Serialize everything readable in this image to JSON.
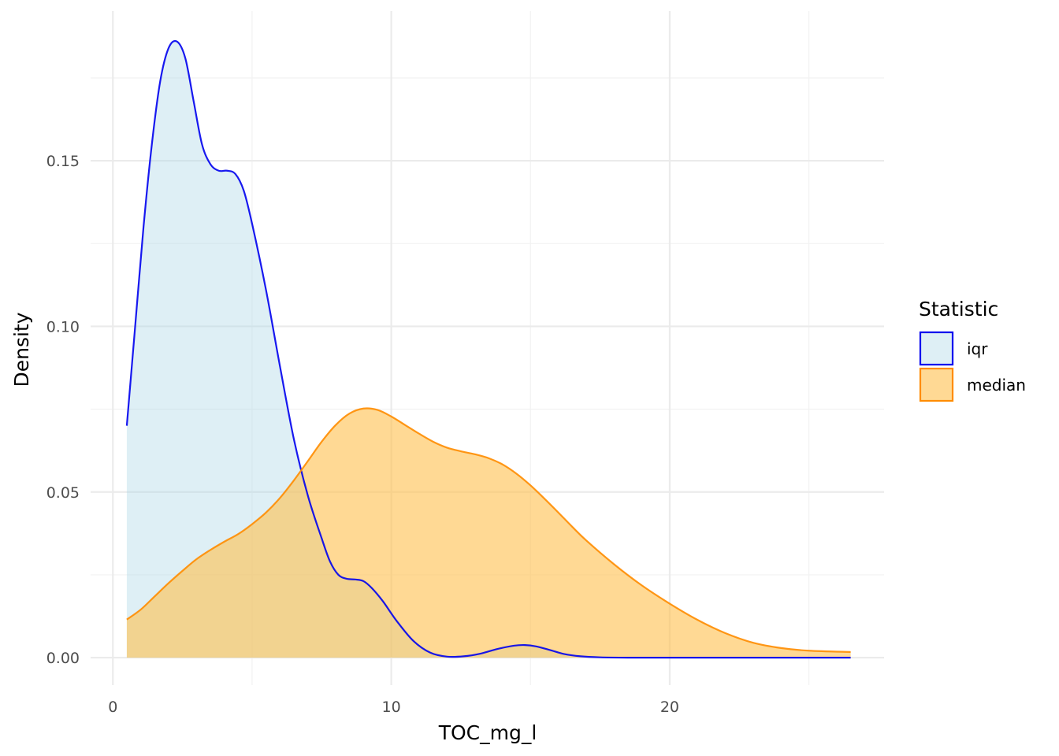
{
  "chart_data": {
    "type": "area",
    "title": "",
    "xlabel": "TOC_mg_l",
    "ylabel": "Density",
    "xlim": [
      -0.8,
      27.7
    ],
    "ylim": [
      -0.0083,
      0.1952
    ],
    "x_ticks": [
      0,
      10,
      20
    ],
    "x_minor_ticks": [
      5,
      15,
      25
    ],
    "y_ticks": [
      0.0,
      0.05,
      0.1,
      0.15
    ],
    "y_tick_labels": [
      "0.00",
      "0.05",
      "0.10",
      "0.15"
    ],
    "y_minor_ticks": [
      0.025,
      0.075,
      0.125,
      0.175
    ],
    "grid": true,
    "legend": {
      "title": "Statistic",
      "position": "right"
    },
    "series": [
      {
        "name": "iqr",
        "line_color": "#0000ee",
        "fill_color": "#add8e6",
        "fill_opacity": 0.4,
        "x": [
          0.5,
          0.8,
          1.1,
          1.4,
          1.7,
          2.0,
          2.3,
          2.6,
          2.9,
          3.2,
          3.5,
          3.8,
          4.1,
          4.4,
          4.7,
          5.0,
          5.5,
          6.0,
          6.5,
          7.0,
          7.5,
          7.8,
          8.1,
          8.4,
          8.7,
          9.0,
          9.3,
          9.7,
          10.2,
          10.8,
          11.4,
          12.0,
          12.6,
          13.2,
          13.8,
          14.4,
          14.8,
          15.2,
          15.7,
          16.2,
          16.8,
          17.5,
          18.5,
          20.0,
          22.0,
          24.0,
          26.5
        ],
        "y": [
          0.07,
          0.1,
          0.13,
          0.155,
          0.174,
          0.184,
          0.186,
          0.181,
          0.168,
          0.155,
          0.149,
          0.147,
          0.147,
          0.146,
          0.141,
          0.131,
          0.111,
          0.088,
          0.066,
          0.049,
          0.036,
          0.029,
          0.025,
          0.0238,
          0.0236,
          0.0231,
          0.021,
          0.017,
          0.011,
          0.005,
          0.0015,
          0.0003,
          0.0004,
          0.0012,
          0.0026,
          0.0036,
          0.0038,
          0.0034,
          0.0023,
          0.0011,
          0.0004,
          0.0001,
          0.0,
          0.0,
          0.0,
          0.0,
          0.0
        ]
      },
      {
        "name": "median",
        "line_color": "#ff8c00",
        "fill_color": "#ffc04c",
        "fill_opacity": 0.6,
        "x": [
          0.5,
          1.0,
          1.5,
          2.0,
          2.5,
          3.0,
          3.5,
          4.0,
          4.5,
          5.0,
          5.5,
          6.0,
          6.5,
          7.0,
          7.5,
          8.0,
          8.5,
          9.0,
          9.5,
          10.0,
          10.5,
          11.0,
          11.5,
          12.0,
          12.5,
          13.0,
          13.5,
          14.0,
          14.5,
          15.0,
          15.5,
          16.0,
          16.5,
          17.0,
          18.0,
          19.0,
          20.0,
          21.0,
          22.0,
          23.0,
          24.0,
          25.0,
          26.5
        ],
        "y": [
          0.0115,
          0.0145,
          0.0185,
          0.0225,
          0.0262,
          0.0297,
          0.0325,
          0.035,
          0.0373,
          0.0403,
          0.0438,
          0.0482,
          0.0535,
          0.0593,
          0.0652,
          0.0702,
          0.0737,
          0.0752,
          0.0748,
          0.0728,
          0.0702,
          0.0676,
          0.0652,
          0.0634,
          0.0623,
          0.0614,
          0.0602,
          0.0583,
          0.0555,
          0.052,
          0.048,
          0.0438,
          0.0395,
          0.0354,
          0.0282,
          0.0218,
          0.0163,
          0.0114,
          0.0074,
          0.0045,
          0.0029,
          0.0021,
          0.0017
        ]
      }
    ]
  }
}
